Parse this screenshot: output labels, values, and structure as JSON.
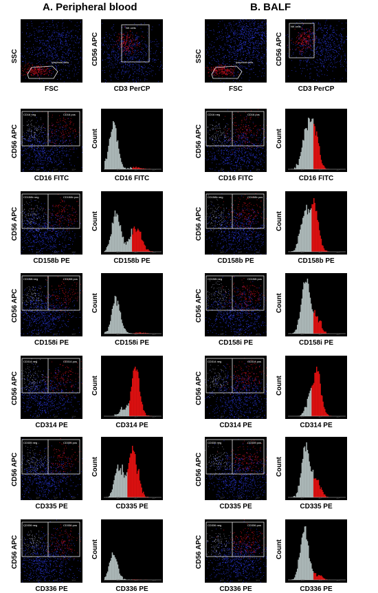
{
  "titles": {
    "left": "A. Peripheral blood",
    "right": "B. BALF"
  },
  "scatter_row1": {
    "lymphoid": {
      "x_label": "FSC",
      "y_label": "SSC",
      "gate": "lymphoid cells"
    },
    "nk": {
      "x_label": "CD3 PerCP",
      "y_label": "CD56 APC",
      "gate": "NK cells"
    }
  },
  "rows": [
    {
      "marker": "CD16 FITC",
      "neg": "CD16 neg",
      "pos": "CD16 pos"
    },
    {
      "marker": "CD158b PE",
      "neg": "CD158b neg",
      "pos": "CD158b pos"
    },
    {
      "marker": "CD158i PE",
      "neg": "CD158i neg",
      "pos": "CD158i pos"
    },
    {
      "marker": "CD314 PE",
      "neg": "CD314 neg",
      "pos": "CD314 pos"
    },
    {
      "marker": "CD335 PE",
      "neg": "CD335 neg",
      "pos": "CD335 pos"
    },
    {
      "marker": "CD336 PE",
      "neg": "CD336 neg",
      "pos": "CD336 pos"
    }
  ],
  "common": {
    "y_scatter": "CD56 APC",
    "y_hist": "Count"
  },
  "colors": {
    "background": "#000000",
    "neg_events": "#3040ff",
    "pos_events": "#e01020",
    "hist_neg": "#a9b5b5",
    "hist_pos": "#d81010",
    "gate": "#e8e8e8"
  }
}
